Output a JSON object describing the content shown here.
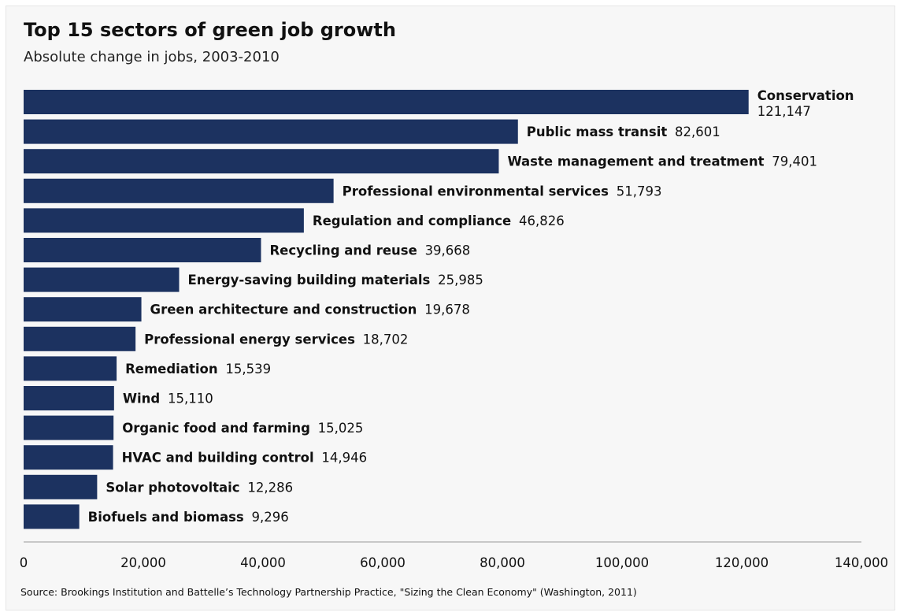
{
  "chart_data": {
    "type": "bar",
    "orientation": "horizontal",
    "title": "Top 15 sectors of green job growth",
    "subtitle": "Absolute change in jobs, 2003-2010",
    "categories": [
      "Conservation",
      "Public mass transit",
      "Waste management and treatment",
      "Professional environmental services",
      "Regulation and compliance",
      "Recycling and reuse",
      "Energy-saving building materials",
      "Green architecture and construction",
      "Professional energy services",
      "Remediation",
      "Wind",
      "Organic food and farming",
      "HVAC and building control",
      "Solar photovoltaic",
      "Biofuels and biomass"
    ],
    "values": [
      121147,
      82601,
      79401,
      51793,
      46826,
      39668,
      25985,
      19678,
      18702,
      15539,
      15110,
      15025,
      14946,
      12286,
      9296
    ],
    "value_labels": [
      "121,147",
      "82,601",
      "79,401",
      "51,793",
      "46,826",
      "39,668",
      "25,985",
      "19,678",
      "18,702",
      "15,539",
      "15,110",
      "15,025",
      "14,946",
      "12,286",
      "9,296"
    ],
    "xlim": [
      0,
      140000
    ],
    "xticks": [
      0,
      20000,
      40000,
      60000,
      80000,
      100000,
      120000,
      140000
    ],
    "xtick_labels": [
      "0",
      "20,000",
      "40,000",
      "60,000",
      "80,000",
      "100,000",
      "120,000",
      "140,000"
    ],
    "bar_color": "#1c3260",
    "grid": false,
    "source": "Source: Brookings Institution and Battelle’s Technology Partnership Practice, \"Sizing the Clean Economy\" (Washington, 2011)"
  }
}
